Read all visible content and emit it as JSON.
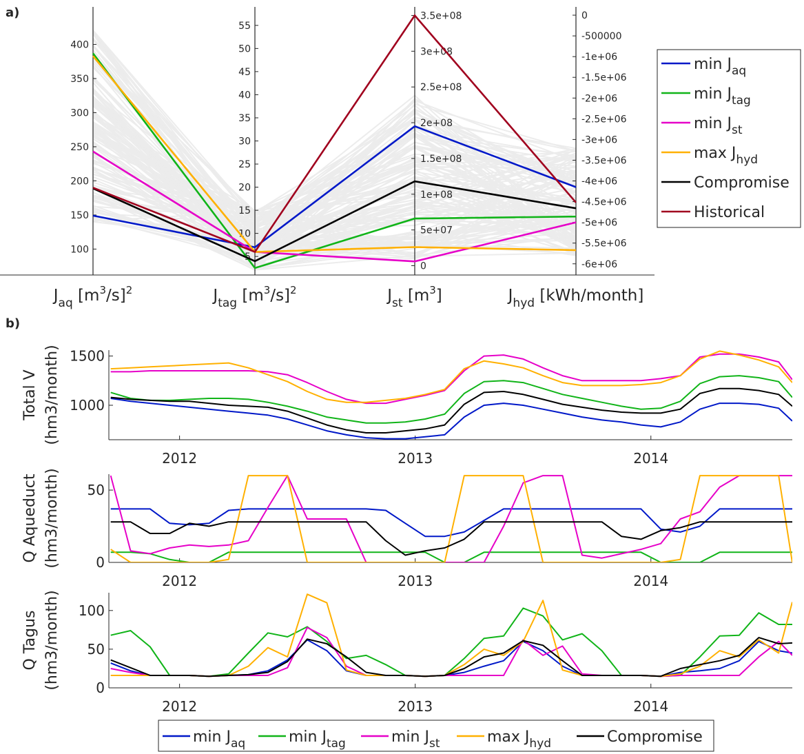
{
  "panel_labels": {
    "a": "a)",
    "b": "b)"
  },
  "colors": {
    "min_jaq": "#0018c8",
    "min_jtag": "#10b418",
    "min_jst": "#e600c8",
    "max_jhyd": "#ffb000",
    "compromise": "#000000",
    "historical": "#a0001e",
    "background_lines": "#c8c8c8",
    "axis": "#262626"
  },
  "chart_data": [
    {
      "type": "parallel_coordinates",
      "panel": "a)",
      "axes": [
        {
          "name_main": "J",
          "name_sub": "aq",
          "unit": " [m",
          "unit_sup": "3",
          "unit_end": "/s]",
          "unit_end_sup": "2",
          "range": [
            62,
            455
          ],
          "ticks": [
            100,
            150,
            200,
            250,
            300,
            350,
            400
          ],
          "tick_labels": [
            "100",
            "150",
            "200",
            "250",
            "300",
            "350",
            "400"
          ],
          "tick_side": "left"
        },
        {
          "name_main": "J",
          "name_sub": "tag",
          "unit": " [m",
          "unit_sup": "3",
          "unit_end": "/s]",
          "unit_end_sup": "2",
          "range": [
            1,
            59
          ],
          "ticks": [
            5,
            10,
            15,
            20,
            25,
            30,
            35,
            40,
            45,
            50,
            55
          ],
          "tick_labels": [
            "5",
            "10",
            "15",
            "20",
            "25",
            "30",
            "35",
            "40",
            "45",
            "50",
            "55"
          ],
          "tick_side": "left"
        },
        {
          "name_main": "J",
          "name_sub": "st",
          "unit": " [m",
          "unit_sup": "3",
          "unit_end": "]",
          "unit_end_sup": "",
          "range": [
            -13000000,
            362000000
          ],
          "ticks": [
            0,
            50000000,
            100000000,
            150000000,
            200000000,
            250000000,
            300000000,
            350000000
          ],
          "tick_labels": [
            "0",
            "5e+07",
            "1e+08",
            "1.5e+08",
            "2e+08",
            "2.5e+08",
            "3e+08",
            "3.5e+08"
          ],
          "tick_side": "right"
        },
        {
          "name_main": "J",
          "name_sub": "hyd",
          "unit": " [kWh/month]",
          "unit_sup": "",
          "unit_end": "",
          "unit_end_sup": "",
          "range": [
            -6270000,
            200000
          ],
          "ticks": [
            0,
            -500000,
            -1000000,
            -1500000,
            -2000000,
            -2500000,
            -3000000,
            -3500000,
            -4000000,
            -4500000,
            -5000000,
            -5500000,
            -6000000
          ],
          "tick_labels": [
            "0",
            "-500000",
            "-1e+06",
            "-1.5e+06",
            "-2e+06",
            "-2.5e+06",
            "-3e+06",
            "-3.5e+06",
            "-4e+06",
            "-4.5e+06",
            "-5e+06",
            "-5.5e+06",
            "-6e+06"
          ],
          "tick_side": "right"
        }
      ],
      "series": [
        {
          "key": "min_jaq",
          "label_main": "min J",
          "label_sub": "aq",
          "values": [
            149,
            7,
            195000000,
            -4150000
          ]
        },
        {
          "key": "min_jtag",
          "label_main": "min J",
          "label_sub": "tag",
          "values": [
            387,
            2.5,
            66000000,
            -4860000
          ]
        },
        {
          "key": "min_jst",
          "label_main": "min J",
          "label_sub": "st",
          "values": [
            243,
            6,
            6000000,
            -5000000
          ]
        },
        {
          "key": "max_jhyd",
          "label_main": "max J",
          "label_sub": "hyd",
          "values": [
            383,
            6,
            26000000,
            -5670000
          ]
        },
        {
          "key": "compromise",
          "label_main": "Compromise",
          "label_sub": "",
          "values": [
            189,
            4,
            118000000,
            -4660000
          ]
        },
        {
          "key": "historical",
          "label_main": "Historical",
          "label_sub": "",
          "values": [
            190,
            6,
            350000000,
            -4520000
          ]
        }
      ],
      "legend_position": "right"
    },
    {
      "type": "line",
      "panel": "b)",
      "subplot": "Total V",
      "ylabel_line1": "Total V",
      "ylabel_line2": "(hm3/month)",
      "ylim": [
        650,
        1560
      ],
      "yticks": [
        1000,
        1500
      ],
      "xlim": [
        2011.7,
        2014.6
      ],
      "xticks": [
        2012,
        2013,
        2014
      ],
      "x": [
        2011.708,
        2011.792,
        2011.875,
        2011.958,
        2012.042,
        2012.125,
        2012.208,
        2012.292,
        2012.375,
        2012.458,
        2012.542,
        2012.625,
        2012.708,
        2012.792,
        2012.875,
        2012.958,
        2013.042,
        2013.125,
        2013.208,
        2013.292,
        2013.375,
        2013.458,
        2013.542,
        2013.625,
        2013.708,
        2013.792,
        2013.875,
        2013.958,
        2014.042,
        2014.125,
        2014.208,
        2014.292,
        2014.375,
        2014.458,
        2014.542,
        2014.6
      ],
      "series": [
        {
          "key": "min_jaq",
          "values": [
            1070,
            1040,
            1020,
            1000,
            980,
            960,
            940,
            920,
            900,
            860,
            800,
            740,
            700,
            670,
            660,
            660,
            680,
            700,
            880,
            1000,
            1020,
            1000,
            960,
            920,
            880,
            850,
            830,
            800,
            780,
            830,
            960,
            1020,
            1020,
            1010,
            970,
            840
          ]
        },
        {
          "key": "min_jtag",
          "values": [
            1130,
            1070,
            1050,
            1050,
            1060,
            1070,
            1070,
            1060,
            1030,
            990,
            940,
            880,
            850,
            820,
            820,
            830,
            860,
            910,
            1120,
            1240,
            1250,
            1230,
            1170,
            1110,
            1070,
            1030,
            990,
            960,
            970,
            1040,
            1220,
            1290,
            1300,
            1280,
            1240,
            1080
          ]
        },
        {
          "key": "min_jst",
          "values": [
            1340,
            1340,
            1350,
            1350,
            1350,
            1350,
            1350,
            1350,
            1340,
            1310,
            1230,
            1140,
            1060,
            1020,
            1020,
            1060,
            1100,
            1150,
            1350,
            1500,
            1510,
            1470,
            1380,
            1300,
            1250,
            1250,
            1250,
            1250,
            1270,
            1300,
            1490,
            1520,
            1520,
            1490,
            1440,
            1260
          ]
        },
        {
          "key": "max_jhyd",
          "values": [
            1370,
            1380,
            1390,
            1400,
            1410,
            1420,
            1430,
            1380,
            1310,
            1240,
            1140,
            1060,
            1030,
            1030,
            1050,
            1070,
            1110,
            1160,
            1370,
            1450,
            1420,
            1380,
            1300,
            1230,
            1200,
            1200,
            1200,
            1210,
            1230,
            1300,
            1470,
            1550,
            1510,
            1460,
            1390,
            1230
          ]
        },
        {
          "key": "compromise",
          "values": [
            1080,
            1060,
            1050,
            1040,
            1040,
            1020,
            1000,
            990,
            980,
            940,
            870,
            800,
            750,
            720,
            720,
            740,
            760,
            800,
            1010,
            1130,
            1140,
            1110,
            1060,
            1010,
            980,
            950,
            930,
            920,
            920,
            960,
            1120,
            1170,
            1170,
            1150,
            1110,
            990
          ]
        }
      ]
    },
    {
      "type": "line",
      "panel": "b)",
      "subplot": "Q Aqueduct",
      "ylabel_line1": "Q Aqueduct",
      "ylabel_line2": "(hm3/month)",
      "ylim": [
        0,
        61
      ],
      "yticks": [
        0,
        50
      ],
      "xlim": [
        2011.7,
        2014.6
      ],
      "xticks": [
        2012,
        2013,
        2014
      ],
      "x": [
        2011.708,
        2011.792,
        2011.875,
        2011.958,
        2012.042,
        2012.125,
        2012.208,
        2012.292,
        2012.375,
        2012.458,
        2012.542,
        2012.625,
        2012.708,
        2012.792,
        2012.875,
        2012.958,
        2013.042,
        2013.125,
        2013.208,
        2013.292,
        2013.375,
        2013.458,
        2013.542,
        2013.625,
        2013.708,
        2013.792,
        2013.875,
        2013.958,
        2014.042,
        2014.125,
        2014.208,
        2014.292,
        2014.375,
        2014.458,
        2014.542,
        2014.6
      ],
      "series": [
        {
          "key": "min_jaq",
          "values": [
            37,
            37,
            37,
            27,
            26,
            27,
            36,
            37,
            37,
            37,
            37,
            37,
            37,
            37,
            36,
            27,
            18,
            18,
            21,
            29,
            37,
            37,
            37,
            37,
            37,
            37,
            37,
            37,
            23,
            21,
            25,
            37,
            37,
            37,
            37,
            37
          ]
        },
        {
          "key": "min_jtag",
          "values": [
            7,
            7,
            6,
            2,
            0,
            0,
            7,
            7,
            7,
            7,
            7,
            7,
            7,
            7,
            7,
            7,
            7,
            0,
            0,
            7,
            7,
            7,
            7,
            7,
            7,
            7,
            7,
            7,
            0,
            0,
            0,
            7,
            7,
            7,
            7,
            7
          ]
        },
        {
          "key": "min_jst",
          "values": [
            60,
            8,
            6,
            10,
            12,
            11,
            12,
            15,
            38,
            60,
            30,
            30,
            30,
            0,
            0,
            0,
            0,
            0,
            0,
            0,
            25,
            55,
            60,
            60,
            5,
            3,
            6,
            9,
            13,
            30,
            35,
            52,
            60,
            60,
            60,
            60
          ]
        },
        {
          "key": "max_jhyd",
          "values": [
            9,
            0,
            0,
            0,
            0,
            0,
            2,
            60,
            60,
            60,
            0,
            0,
            0,
            0,
            0,
            0,
            0,
            0,
            60,
            60,
            60,
            60,
            0,
            0,
            0,
            0,
            0,
            0,
            0,
            2,
            60,
            60,
            60,
            60,
            60,
            0
          ]
        },
        {
          "key": "compromise",
          "values": [
            28,
            28,
            20,
            20,
            27,
            25,
            28,
            28,
            28,
            28,
            28,
            28,
            28,
            28,
            15,
            5,
            8,
            10,
            16,
            28,
            28,
            28,
            28,
            28,
            28,
            28,
            18,
            16,
            22,
            24,
            28,
            28,
            28,
            28,
            28,
            28
          ]
        }
      ]
    },
    {
      "type": "line",
      "panel": "b)",
      "subplot": "Q Tagus",
      "ylabel_line1": "Q Tagus",
      "ylabel_line2": "(hm3/month)",
      "ylim": [
        0,
        123
      ],
      "yticks": [
        0,
        50,
        100
      ],
      "xlim": [
        2011.7,
        2014.6
      ],
      "xticks": [
        2012,
        2013,
        2014
      ],
      "x": [
        2011.708,
        2011.792,
        2011.875,
        2011.958,
        2012.042,
        2012.125,
        2012.208,
        2012.292,
        2012.375,
        2012.458,
        2012.542,
        2012.625,
        2012.708,
        2012.792,
        2012.875,
        2012.958,
        2013.042,
        2013.125,
        2013.208,
        2013.292,
        2013.375,
        2013.458,
        2013.542,
        2013.625,
        2013.708,
        2013.792,
        2013.875,
        2013.958,
        2014.042,
        2014.125,
        2014.208,
        2014.292,
        2014.375,
        2014.458,
        2014.542,
        2014.6
      ],
      "series": [
        {
          "key": "min_jaq",
          "values": [
            32,
            22,
            16,
            16,
            16,
            15,
            16,
            17,
            22,
            36,
            62,
            48,
            22,
            16,
            16,
            16,
            15,
            16,
            20,
            28,
            35,
            60,
            48,
            28,
            16,
            16,
            16,
            16,
            15,
            20,
            22,
            25,
            35,
            60,
            48,
            45
          ]
        },
        {
          "key": "min_jtag",
          "values": [
            68,
            74,
            53,
            16,
            16,
            15,
            18,
            45,
            71,
            66,
            79,
            60,
            38,
            42,
            30,
            16,
            15,
            16,
            38,
            64,
            67,
            103,
            93,
            62,
            70,
            48,
            16,
            16,
            15,
            16,
            40,
            67,
            68,
            97,
            82,
            82
          ]
        },
        {
          "key": "min_jst",
          "values": [
            25,
            20,
            16,
            16,
            16,
            15,
            16,
            16,
            16,
            26,
            78,
            65,
            28,
            16,
            16,
            16,
            15,
            16,
            16,
            16,
            16,
            62,
            42,
            54,
            18,
            16,
            16,
            16,
            15,
            16,
            16,
            16,
            16,
            40,
            60,
            42
          ]
        },
        {
          "key": "max_jhyd",
          "values": [
            16,
            16,
            16,
            16,
            16,
            15,
            16,
            28,
            52,
            40,
            121,
            110,
            23,
            16,
            16,
            16,
            15,
            16,
            30,
            50,
            42,
            60,
            113,
            23,
            16,
            16,
            16,
            16,
            15,
            18,
            28,
            48,
            40,
            62,
            45,
            111
          ]
        },
        {
          "key": "compromise",
          "values": [
            36,
            26,
            16,
            16,
            16,
            15,
            16,
            17,
            20,
            34,
            63,
            57,
            40,
            20,
            16,
            16,
            15,
            16,
            25,
            40,
            45,
            61,
            55,
            35,
            16,
            16,
            16,
            16,
            15,
            25,
            30,
            35,
            42,
            65,
            57,
            58
          ]
        }
      ],
      "legend_position": "bottom"
    }
  ],
  "bottom_legend": [
    {
      "key": "min_jaq",
      "label_main": "min J",
      "label_sub": "aq"
    },
    {
      "key": "min_jtag",
      "label_main": "min J",
      "label_sub": "tag"
    },
    {
      "key": "min_jst",
      "label_main": "min J",
      "label_sub": "st"
    },
    {
      "key": "max_jhyd",
      "label_main": "max J",
      "label_sub": "hyd"
    },
    {
      "key": "compromise",
      "label_main": "Compromise",
      "label_sub": ""
    }
  ]
}
